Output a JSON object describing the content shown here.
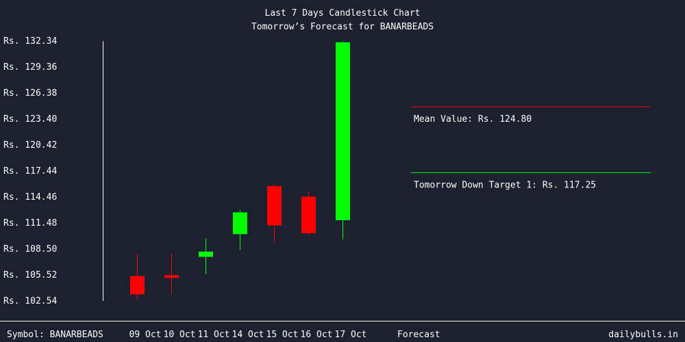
{
  "chart_data": {
    "type": "candlestick",
    "title": "Last 7 Days Candlestick Chart",
    "subtitle": "Tomorrow’s Forecast for BANARBEADS",
    "currency_prefix": "Rs. ",
    "y_ticks": [
      "Rs. 132.34",
      "Rs. 129.36",
      "Rs. 126.38",
      "Rs. 123.40",
      "Rs. 120.42",
      "Rs. 117.44",
      "Rs. 114.46",
      "Rs. 111.48",
      "Rs. 108.50",
      "Rs. 105.52",
      "Rs. 102.54"
    ],
    "ylim": [
      102.54,
      132.34
    ],
    "categories": [
      "09 Oct",
      "10 Oct",
      "11 Oct",
      "14 Oct",
      "15 Oct",
      "16 Oct",
      "17 Oct"
    ],
    "candles": [
      {
        "date": "09 Oct",
        "open": 105.4,
        "high": 107.9,
        "low": 102.7,
        "close": 103.3,
        "color": "#ff0000"
      },
      {
        "date": "10 Oct",
        "open": 105.5,
        "high": 108.0,
        "low": 103.3,
        "close": 105.2,
        "color": "#ff0000"
      },
      {
        "date": "11 Oct",
        "open": 107.6,
        "high": 109.7,
        "low": 105.6,
        "close": 108.2,
        "color": "#00ff00"
      },
      {
        "date": "14 Oct",
        "open": 110.2,
        "high": 113.0,
        "low": 108.4,
        "close": 112.7,
        "color": "#00ff00"
      },
      {
        "date": "15 Oct",
        "open": 111.2,
        "high": 115.9,
        "low": 109.3,
        "close": 115.7,
        "color": "#ff0000"
      },
      {
        "date": "16 Oct",
        "open": 114.5,
        "high": 115.1,
        "low": 110.1,
        "close": 110.3,
        "color": "#ff0000"
      },
      {
        "date": "17 Oct",
        "open": 111.8,
        "high": 132.3,
        "low": 109.6,
        "close": 132.2,
        "color": "#00ff00"
      }
    ],
    "forecast_label": "Forecast",
    "reference_lines": [
      {
        "label": "Mean Value: Rs. 124.80",
        "value": 124.8,
        "color": "#ff0000"
      },
      {
        "label": "Tomorrow Down Target 1: Rs. 117.25",
        "value": 117.25,
        "color": "#00ff00"
      }
    ]
  },
  "footer": {
    "symbol": "Symbol: BANARBEADS",
    "brand": "dailybulls.in"
  }
}
